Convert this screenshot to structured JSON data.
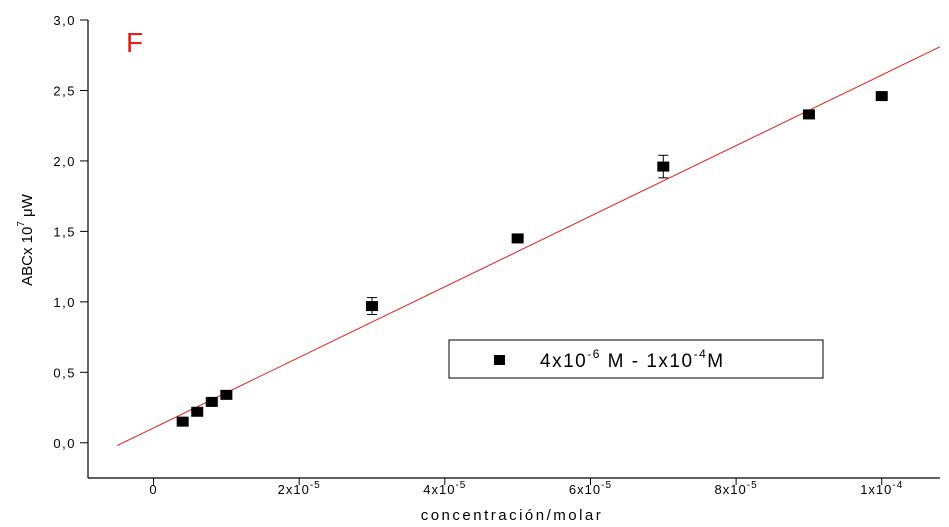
{
  "chart_data": {
    "type": "scatter",
    "panel_label": "F",
    "xlabel": "concentración/molar",
    "ylabel": {
      "base": "ABCx 10",
      "exponent": "7",
      "unit": " μW"
    },
    "xlim": [
      -9e-06,
      0.000108
    ],
    "ylim": [
      -0.25,
      3.0
    ],
    "x_ticks": [
      {
        "value": 0,
        "label": "0",
        "exp": ""
      },
      {
        "value": 2e-05,
        "label": "2x10",
        "exp": "-5"
      },
      {
        "value": 4e-05,
        "label": "4x10",
        "exp": "-5"
      },
      {
        "value": 6e-05,
        "label": "6x10",
        "exp": "-5"
      },
      {
        "value": 8e-05,
        "label": "8x10",
        "exp": "-5"
      },
      {
        "value": 0.0001,
        "label": "1x10",
        "exp": "-4"
      }
    ],
    "y_ticks": [
      {
        "value": 0.0,
        "label": "0,0"
      },
      {
        "value": 0.5,
        "label": "0,5"
      },
      {
        "value": 1.0,
        "label": "1,0"
      },
      {
        "value": 1.5,
        "label": "1,5"
      },
      {
        "value": 2.0,
        "label": "2,0"
      },
      {
        "value": 2.5,
        "label": "2,5"
      },
      {
        "value": 3.0,
        "label": "3,0"
      }
    ],
    "series": [
      {
        "marker_color": "#000000",
        "points": [
          {
            "x": 4e-06,
            "y": 0.15,
            "err": 0
          },
          {
            "x": 6e-06,
            "y": 0.22,
            "err": 0
          },
          {
            "x": 8e-06,
            "y": 0.29,
            "err": 0
          },
          {
            "x": 1e-05,
            "y": 0.34,
            "err": 0
          },
          {
            "x": 3e-05,
            "y": 0.97,
            "err": 0.06
          },
          {
            "x": 5e-05,
            "y": 1.45,
            "err": 0
          },
          {
            "x": 7e-05,
            "y": 1.96,
            "err": 0.08
          },
          {
            "x": 9e-05,
            "y": 2.33,
            "err": 0
          },
          {
            "x": 0.0001,
            "y": 2.46,
            "err": 0
          }
        ]
      }
    ],
    "fit_line": {
      "color": "#e02020",
      "x0": -5e-06,
      "y0": -0.02,
      "x1": 0.000108,
      "y1": 2.81
    },
    "legend": {
      "position": "center-right",
      "parts": [
        {
          "text": "4x10",
          "exp": "-6"
        },
        {
          "text": " M - 1x10",
          "exp": "-4"
        },
        {
          "text": "M",
          "exp": ""
        }
      ]
    },
    "colors": {
      "panel_label": "#e02020",
      "axes": "#000000"
    },
    "grid": false
  }
}
